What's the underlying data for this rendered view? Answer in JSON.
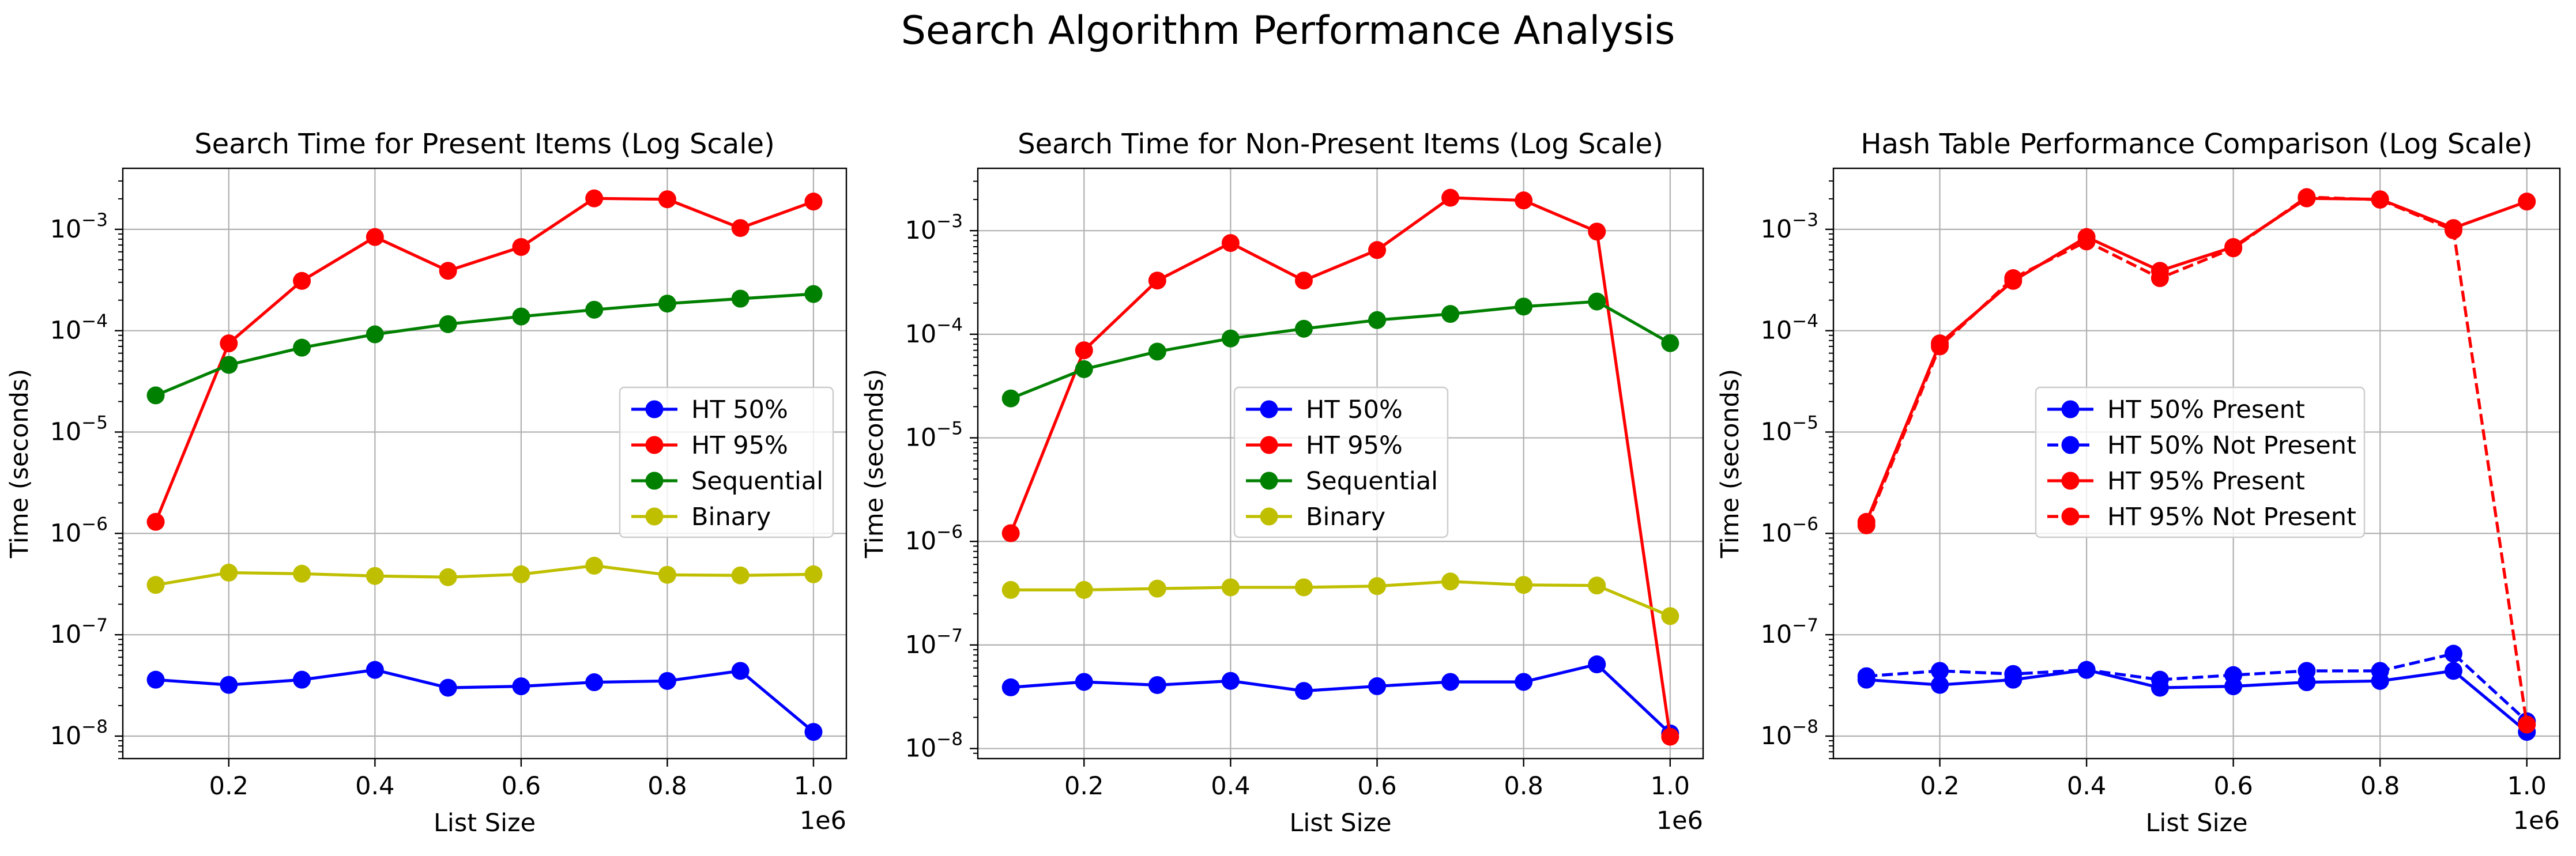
{
  "suptitle": "Search Algorithm Performance Analysis",
  "chart_data": [
    {
      "type": "line",
      "title": "Search Time for Present Items (Log Scale)",
      "xlabel": "List Size",
      "ylabel": "Time (seconds)",
      "x_offset_label": "1e6",
      "x": [
        100000,
        200000,
        300000,
        400000,
        500000,
        600000,
        700000,
        800000,
        900000,
        1000000
      ],
      "xticks": [
        {
          "v": 200000,
          "label": "0.2"
        },
        {
          "v": 400000,
          "label": "0.4"
        },
        {
          "v": 600000,
          "label": "0.6"
        },
        {
          "v": 800000,
          "label": "0.8"
        },
        {
          "v": 1000000,
          "label": "1.0"
        }
      ],
      "xlim": [
        55000,
        1045000
      ],
      "yscale": "log",
      "ylim": [
        6e-09,
        0.004
      ],
      "yticks": [
        {
          "exp": -8
        },
        {
          "exp": -7
        },
        {
          "exp": -6
        },
        {
          "exp": -5
        },
        {
          "exp": -4
        },
        {
          "exp": -3
        }
      ],
      "grid": true,
      "legend_position": "center-right",
      "series": [
        {
          "name": "HT 50%",
          "color": "#0000ff",
          "dash": false,
          "values": [
            3.6e-08,
            3.2e-08,
            3.6e-08,
            4.5e-08,
            3e-08,
            3.1e-08,
            3.4e-08,
            3.5e-08,
            4.4e-08,
            1.1e-08
          ]
        },
        {
          "name": "HT 95%",
          "color": "#ff0000",
          "dash": false,
          "values": [
            1.3e-06,
            7.5e-05,
            0.00031,
            0.00084,
            0.00039,
            0.00067,
            0.00202,
            0.00198,
            0.00103,
            0.00188
          ]
        },
        {
          "name": "Sequential",
          "color": "#008000",
          "dash": false,
          "values": [
            2.3e-05,
            4.6e-05,
            6.8e-05,
            9.2e-05,
            0.000116,
            0.000138,
            0.000161,
            0.000185,
            0.000207,
            0.00023
          ]
        },
        {
          "name": "Binary",
          "color": "#bfbf00",
          "dash": false,
          "values": [
            3.1e-07,
            4.1e-07,
            4e-07,
            3.8e-07,
            3.7e-07,
            3.95e-07,
            4.8e-07,
            3.9e-07,
            3.85e-07,
            3.95e-07
          ]
        }
      ]
    },
    {
      "type": "line",
      "title": "Search Time for Non-Present Items (Log Scale)",
      "xlabel": "List Size",
      "ylabel": "Time (seconds)",
      "x_offset_label": "1e6",
      "x": [
        100000,
        200000,
        300000,
        400000,
        500000,
        600000,
        700000,
        800000,
        900000,
        1000000
      ],
      "xticks": [
        {
          "v": 200000,
          "label": "0.2"
        },
        {
          "v": 400000,
          "label": "0.4"
        },
        {
          "v": 600000,
          "label": "0.6"
        },
        {
          "v": 800000,
          "label": "0.8"
        },
        {
          "v": 1000000,
          "label": "1.0"
        }
      ],
      "xlim": [
        55000,
        1045000
      ],
      "yscale": "log",
      "ylim": [
        8e-09,
        0.004
      ],
      "yticks": [
        {
          "exp": -8
        },
        {
          "exp": -7
        },
        {
          "exp": -6
        },
        {
          "exp": -5
        },
        {
          "exp": -4
        },
        {
          "exp": -3
        }
      ],
      "grid": true,
      "legend_position": "center",
      "series": [
        {
          "name": "HT 50%",
          "color": "#0000ff",
          "dash": false,
          "values": [
            3.9e-08,
            4.4e-08,
            4.1e-08,
            4.5e-08,
            3.6e-08,
            4e-08,
            4.4e-08,
            4.4e-08,
            6.5e-08,
            1.4e-08
          ]
        },
        {
          "name": "HT 95%",
          "color": "#ff0000",
          "dash": false,
          "values": [
            1.2e-06,
            7e-05,
            0.00033,
            0.00076,
            0.00033,
            0.00065,
            0.00208,
            0.00196,
            0.00098,
            1.3e-08
          ]
        },
        {
          "name": "Sequential",
          "color": "#008000",
          "dash": false,
          "values": [
            2.4e-05,
            4.6e-05,
            6.8e-05,
            9.1e-05,
            0.000113,
            0.000137,
            0.000157,
            0.000185,
            0.000207,
            8.2e-05
          ]
        },
        {
          "name": "Binary",
          "color": "#bfbf00",
          "dash": false,
          "values": [
            3.4e-07,
            3.4e-07,
            3.5e-07,
            3.6e-07,
            3.6e-07,
            3.7e-07,
            4.1e-07,
            3.8e-07,
            3.75e-07,
            1.9e-07
          ]
        }
      ]
    },
    {
      "type": "line",
      "title": "Hash Table Performance Comparison (Log Scale)",
      "xlabel": "List Size",
      "ylabel": "Time (seconds)",
      "x_offset_label": "1e6",
      "x": [
        100000,
        200000,
        300000,
        400000,
        500000,
        600000,
        700000,
        800000,
        900000,
        1000000
      ],
      "xticks": [
        {
          "v": 200000,
          "label": "0.2"
        },
        {
          "v": 400000,
          "label": "0.4"
        },
        {
          "v": 600000,
          "label": "0.6"
        },
        {
          "v": 800000,
          "label": "0.8"
        },
        {
          "v": 1000000,
          "label": "1.0"
        }
      ],
      "xlim": [
        55000,
        1045000
      ],
      "yscale": "log",
      "ylim": [
        6e-09,
        0.004
      ],
      "yticks": [
        {
          "exp": -8
        },
        {
          "exp": -7
        },
        {
          "exp": -6
        },
        {
          "exp": -5
        },
        {
          "exp": -4
        },
        {
          "exp": -3
        }
      ],
      "grid": true,
      "legend_position": "center",
      "series": [
        {
          "name": "HT 50% Present",
          "color": "#0000ff",
          "dash": false,
          "values": [
            3.6e-08,
            3.2e-08,
            3.6e-08,
            4.5e-08,
            3e-08,
            3.1e-08,
            3.4e-08,
            3.5e-08,
            4.4e-08,
            1.1e-08
          ]
        },
        {
          "name": "HT 50% Not Present",
          "color": "#0000ff",
          "dash": true,
          "values": [
            3.9e-08,
            4.4e-08,
            4.1e-08,
            4.5e-08,
            3.6e-08,
            4e-08,
            4.4e-08,
            4.4e-08,
            6.5e-08,
            1.4e-08
          ]
        },
        {
          "name": "HT 95% Present",
          "color": "#ff0000",
          "dash": false,
          "values": [
            1.3e-06,
            7.5e-05,
            0.00031,
            0.00084,
            0.00039,
            0.00067,
            0.00202,
            0.00198,
            0.00103,
            0.00188
          ]
        },
        {
          "name": "HT 95% Not Present",
          "color": "#ff0000",
          "dash": true,
          "values": [
            1.2e-06,
            7e-05,
            0.00033,
            0.00076,
            0.00033,
            0.00065,
            0.00208,
            0.00196,
            0.00098,
            1.3e-08
          ]
        }
      ]
    }
  ]
}
